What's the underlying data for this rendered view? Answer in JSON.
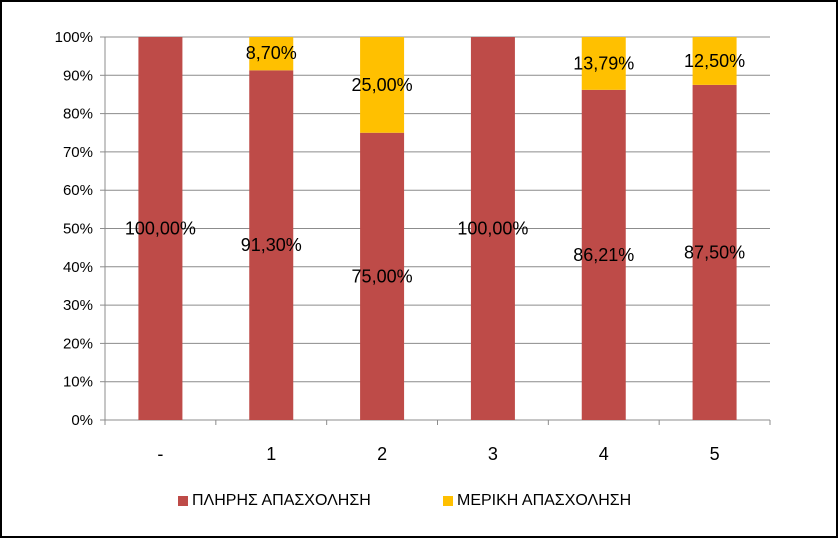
{
  "chart_data": {
    "type": "bar",
    "stacked": true,
    "percent": true,
    "categories": [
      "-",
      "1",
      "2",
      "3",
      "4",
      "5"
    ],
    "series": [
      {
        "name": "ΠΛΗΡΗΣ ΑΠΑΣΧΟΛΗΣΗ",
        "color": "#BE4B48",
        "values": [
          100,
          91.3,
          75,
          100,
          86.21,
          87.5
        ],
        "labels": [
          "100,00%",
          "91,30%",
          "75,00%",
          "100,00%",
          "86,21%",
          "87,50%"
        ]
      },
      {
        "name": "ΜΕΡΙΚΗ ΑΠΑΣΧΟΛΗΣΗ",
        "color": "#FFC000",
        "values": [
          0,
          8.7,
          25,
          0,
          13.79,
          12.5
        ],
        "labels": [
          "",
          "8,70%",
          "25,00%",
          "",
          "13,79%",
          "12,50%"
        ]
      }
    ],
    "ylim": [
      0,
      100
    ],
    "yticks": [
      "0%",
      "10%",
      "20%",
      "30%",
      "40%",
      "50%",
      "60%",
      "70%",
      "80%",
      "90%",
      "100%"
    ],
    "grid": true,
    "legend_position": "bottom"
  }
}
